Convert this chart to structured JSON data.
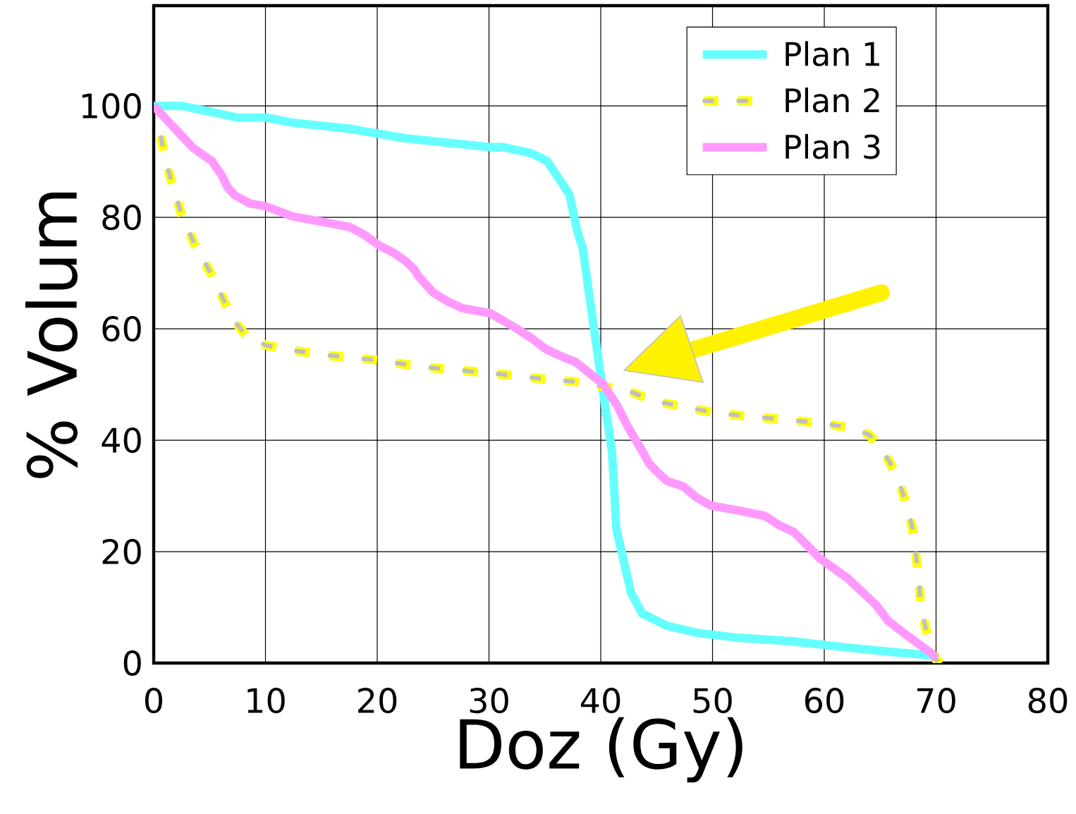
{
  "chart_data": {
    "type": "line",
    "xlabel": "Doz (Gy)",
    "ylabel": "% Volum",
    "xlim": [
      0,
      80
    ],
    "xticks": [
      0,
      10,
      20,
      30,
      40,
      50,
      60,
      70,
      80
    ],
    "ylim": [
      0,
      118
    ],
    "yticks": [
      0,
      20,
      40,
      60,
      80,
      100
    ],
    "grid": true,
    "legend": "top right",
    "series": [
      {
        "name": "Plan 1",
        "color": "#66ffff",
        "line_style": "solid",
        "x": [
          0,
          2.5,
          5,
          7.5,
          10.1,
          12.4,
          17.5,
          22.5,
          30.1,
          31.3,
          33.8,
          35.2,
          37.2,
          37.9,
          38.4,
          38.9,
          40.1,
          41,
          41.4,
          42.7,
          43.7,
          45.9,
          48.7,
          52,
          57.2,
          62,
          66,
          69.5,
          70
        ],
        "values": [
          100,
          100,
          99,
          97.9,
          97.9,
          97,
          95.9,
          94.2,
          92.6,
          92.6,
          91.5,
          90.1,
          84.1,
          77.5,
          74.4,
          67,
          50.1,
          38,
          24,
          12.7,
          8.9,
          6.7,
          5.4,
          4.6,
          3.9,
          2.8,
          2,
          1.4,
          1
        ]
      },
      {
        "name": "Plan 2",
        "color": "#ffff00",
        "line_style": "dashed",
        "x": [
          0.6,
          1.2,
          1.8,
          2.5,
          3.7,
          5,
          6.2,
          7.2,
          8.4,
          10.1,
          12.6,
          15.2,
          17.8,
          20.3,
          22.5,
          25.4,
          30.4,
          35.3,
          37.7,
          42.4,
          44.9,
          47.4,
          50,
          52.5,
          57.5,
          59.9,
          62.4,
          64,
          64.9,
          65.9,
          66.7,
          67.3,
          67.9,
          68.2,
          68.5,
          68.6,
          69.1,
          70,
          70.5
        ],
        "values": [
          94.7,
          89.3,
          84.9,
          80.5,
          74.9,
          70.4,
          65.4,
          61.4,
          58.5,
          57,
          56.1,
          55.3,
          54.8,
          54.3,
          53.6,
          52.9,
          52,
          50.9,
          50.5,
          48.9,
          47,
          46,
          45,
          44.4,
          43.5,
          43,
          42.2,
          41,
          39,
          35.9,
          32.4,
          28.9,
          24.1,
          19.4,
          14.7,
          10.3,
          6.1,
          0.6,
          0
        ]
      },
      {
        "name": "Plan 3",
        "color": "#ff99ff",
        "line_style": "solid",
        "x": [
          0,
          3.5,
          5.2,
          6.1,
          6.6,
          7.3,
          8.6,
          10,
          12.4,
          17.5,
          18.9,
          20.2,
          21.5,
          22.5,
          23.3,
          23.7,
          25,
          26.3,
          27.6,
          30.1,
          32.6,
          33.8,
          35.2,
          37,
          37.7,
          40.2,
          40.6,
          41.5,
          42.4,
          43.7,
          44.3,
          44.9,
          45.9,
          47.4,
          48.5,
          49.8,
          52.5,
          54.7,
          56,
          57.3,
          59.6,
          62.1,
          64.6,
          65.7,
          67.3,
          68.6,
          69.7,
          70
        ],
        "values": [
          100,
          92.5,
          90.1,
          87.5,
          85.4,
          83.9,
          82.5,
          82,
          80.2,
          78.3,
          76.8,
          74.9,
          73.6,
          72.2,
          70.7,
          69.4,
          66.5,
          64.9,
          63.7,
          62.8,
          59.9,
          58.3,
          56.2,
          54.6,
          54.1,
          50.1,
          48.9,
          46.1,
          42.5,
          38.1,
          35.9,
          34.6,
          32.7,
          31.7,
          29.8,
          28.3,
          27.3,
          26.4,
          24.7,
          23.5,
          18.8,
          15.2,
          10.5,
          7.6,
          5.1,
          3.2,
          1.6,
          0.8
        ]
      }
    ]
  }
}
